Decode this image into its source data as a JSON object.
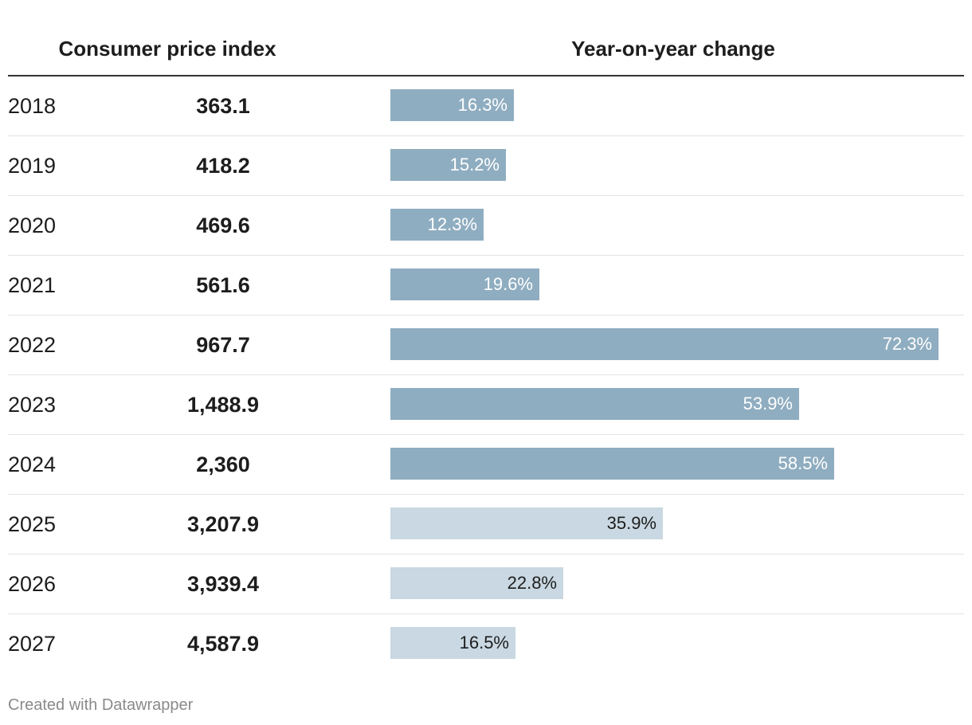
{
  "chart_data": {
    "type": "table",
    "columns": [
      "",
      "Consumer price index",
      "Year-on-year change"
    ],
    "rows": [
      {
        "year": "2018",
        "cpi": "363.1",
        "yoy": 16.3,
        "yoy_label": "16.3%",
        "projected": false
      },
      {
        "year": "2019",
        "cpi": "418.2",
        "yoy": 15.2,
        "yoy_label": "15.2%",
        "projected": false
      },
      {
        "year": "2020",
        "cpi": "469.6",
        "yoy": 12.3,
        "yoy_label": "12.3%",
        "projected": false
      },
      {
        "year": "2021",
        "cpi": "561.6",
        "yoy": 19.6,
        "yoy_label": "19.6%",
        "projected": false
      },
      {
        "year": "2022",
        "cpi": "967.7",
        "yoy": 72.3,
        "yoy_label": "72.3%",
        "projected": false
      },
      {
        "year": "2023",
        "cpi": "1,488.9",
        "yoy": 53.9,
        "yoy_label": "53.9%",
        "projected": false
      },
      {
        "year": "2024",
        "cpi": "2,360",
        "yoy": 58.5,
        "yoy_label": "58.5%",
        "projected": false
      },
      {
        "year": "2025",
        "cpi": "3,207.9",
        "yoy": 35.9,
        "yoy_label": "35.9%",
        "projected": true
      },
      {
        "year": "2026",
        "cpi": "3,939.4",
        "yoy": 22.8,
        "yoy_label": "22.8%",
        "projected": true
      },
      {
        "year": "2027",
        "cpi": "4,587.9",
        "yoy": 16.5,
        "yoy_label": "16.5%",
        "projected": true
      }
    ],
    "bar_max": 72.3,
    "colors": {
      "actual_bar": "#8fadc0",
      "projected_bar": "#c9d8e2"
    }
  },
  "footer": {
    "credit": "Created with Datawrapper"
  }
}
